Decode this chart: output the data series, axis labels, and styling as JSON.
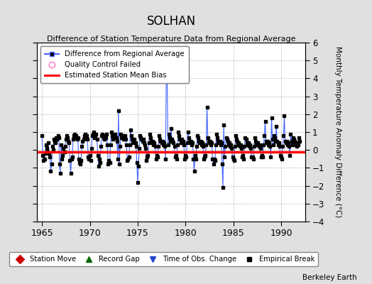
{
  "title": "SOLHAN",
  "subtitle": "Difference of Station Temperature Data from Regional Average",
  "ylabel_right": "Monthly Temperature Anomaly Difference (°C)",
  "xlim": [
    1964.5,
    1992.5
  ],
  "ylim": [
    -4,
    6
  ],
  "yticks": [
    -4,
    -3,
    -2,
    -1,
    0,
    1,
    2,
    3,
    4,
    5,
    6
  ],
  "xticks": [
    1965,
    1970,
    1975,
    1980,
    1985,
    1990
  ],
  "bias_value": -0.1,
  "background_color": "#e0e0e0",
  "plot_bg_color": "#ffffff",
  "line_color": "#4466ff",
  "marker_color": "#000000",
  "bias_color": "#ff0000",
  "watermark": "Berkeley Earth",
  "data": [
    [
      1965.0,
      0.8
    ],
    [
      1965.083,
      -0.3
    ],
    [
      1965.167,
      -0.6
    ],
    [
      1965.25,
      -0.5
    ],
    [
      1965.333,
      -0.2
    ],
    [
      1965.417,
      0.3
    ],
    [
      1965.5,
      0.1
    ],
    [
      1965.583,
      -0.1
    ],
    [
      1965.667,
      0.4
    ],
    [
      1965.75,
      -0.2
    ],
    [
      1965.833,
      -0.4
    ],
    [
      1965.917,
      -1.2
    ],
    [
      1966.0,
      -0.8
    ],
    [
      1966.083,
      0.2
    ],
    [
      1966.167,
      0.0
    ],
    [
      1966.25,
      0.6
    ],
    [
      1966.333,
      0.5
    ],
    [
      1966.417,
      0.4
    ],
    [
      1966.5,
      0.7
    ],
    [
      1966.583,
      0.6
    ],
    [
      1966.667,
      0.8
    ],
    [
      1966.75,
      0.7
    ],
    [
      1966.833,
      -0.8
    ],
    [
      1966.917,
      -1.3
    ],
    [
      1967.0,
      0.3
    ],
    [
      1967.083,
      -0.5
    ],
    [
      1967.167,
      -0.3
    ],
    [
      1967.25,
      0.1
    ],
    [
      1967.333,
      -0.1
    ],
    [
      1967.417,
      0.2
    ],
    [
      1967.5,
      0.6
    ],
    [
      1967.583,
      0.8
    ],
    [
      1967.667,
      0.7
    ],
    [
      1967.75,
      0.5
    ],
    [
      1967.833,
      0.4
    ],
    [
      1967.917,
      -0.6
    ],
    [
      1968.0,
      -1.3
    ],
    [
      1968.083,
      -0.5
    ],
    [
      1968.167,
      -0.4
    ],
    [
      1968.25,
      0.6
    ],
    [
      1968.333,
      0.8
    ],
    [
      1968.417,
      0.9
    ],
    [
      1968.5,
      0.7
    ],
    [
      1968.583,
      0.8
    ],
    [
      1968.667,
      0.6
    ],
    [
      1968.75,
      0.7
    ],
    [
      1968.833,
      -0.5
    ],
    [
      1968.917,
      -0.7
    ],
    [
      1969.0,
      -0.8
    ],
    [
      1969.083,
      -0.6
    ],
    [
      1969.167,
      0.2
    ],
    [
      1969.25,
      0.5
    ],
    [
      1969.333,
      0.6
    ],
    [
      1969.417,
      0.8
    ],
    [
      1969.5,
      0.9
    ],
    [
      1969.583,
      0.7
    ],
    [
      1969.667,
      0.8
    ],
    [
      1969.75,
      0.6
    ],
    [
      1969.833,
      -0.4
    ],
    [
      1969.917,
      -0.5
    ],
    [
      1970.0,
      -0.3
    ],
    [
      1970.083,
      -0.6
    ],
    [
      1970.167,
      0.1
    ],
    [
      1970.25,
      0.8
    ],
    [
      1970.333,
      0.9
    ],
    [
      1970.417,
      1.0
    ],
    [
      1970.5,
      0.7
    ],
    [
      1970.583,
      0.8
    ],
    [
      1970.667,
      0.9
    ],
    [
      1970.75,
      0.6
    ],
    [
      1970.833,
      -0.3
    ],
    [
      1970.917,
      -0.9
    ],
    [
      1971.0,
      -0.5
    ],
    [
      1971.083,
      -0.7
    ],
    [
      1971.167,
      0.2
    ],
    [
      1971.25,
      0.8
    ],
    [
      1971.333,
      0.9
    ],
    [
      1971.417,
      0.7
    ],
    [
      1971.5,
      0.6
    ],
    [
      1971.583,
      0.8
    ],
    [
      1971.667,
      0.7
    ],
    [
      1971.75,
      0.9
    ],
    [
      1971.833,
      0.3
    ],
    [
      1971.917,
      -0.8
    ],
    [
      1972.0,
      -0.6
    ],
    [
      1972.083,
      -0.7
    ],
    [
      1972.167,
      0.3
    ],
    [
      1972.25,
      1.0
    ],
    [
      1972.333,
      0.8
    ],
    [
      1972.417,
      0.6
    ],
    [
      1972.5,
      0.7
    ],
    [
      1972.583,
      0.8
    ],
    [
      1972.667,
      0.9
    ],
    [
      1972.75,
      0.7
    ],
    [
      1972.833,
      0.5
    ],
    [
      1972.917,
      -0.5
    ],
    [
      1973.0,
      2.2
    ],
    [
      1973.083,
      -0.8
    ],
    [
      1973.167,
      0.2
    ],
    [
      1973.25,
      0.9
    ],
    [
      1973.333,
      0.7
    ],
    [
      1973.417,
      0.8
    ],
    [
      1973.5,
      0.6
    ],
    [
      1973.583,
      0.7
    ],
    [
      1973.667,
      0.8
    ],
    [
      1973.75,
      0.6
    ],
    [
      1973.833,
      0.3
    ],
    [
      1973.917,
      -0.6
    ],
    [
      1974.0,
      -0.5
    ],
    [
      1974.083,
      -0.4
    ],
    [
      1974.167,
      0.3
    ],
    [
      1974.25,
      1.1
    ],
    [
      1974.333,
      0.8
    ],
    [
      1974.417,
      0.6
    ],
    [
      1974.5,
      0.4
    ],
    [
      1974.583,
      0.5
    ],
    [
      1974.667,
      0.6
    ],
    [
      1974.75,
      0.4
    ],
    [
      1974.833,
      0.2
    ],
    [
      1974.917,
      -0.7
    ],
    [
      1975.0,
      -1.8
    ],
    [
      1975.083,
      -0.9
    ],
    [
      1975.167,
      0.1
    ],
    [
      1975.25,
      0.8
    ],
    [
      1975.333,
      0.7
    ],
    [
      1975.417,
      0.6
    ],
    [
      1975.5,
      0.5
    ],
    [
      1975.583,
      0.6
    ],
    [
      1975.667,
      0.4
    ],
    [
      1975.75,
      0.3
    ],
    [
      1975.833,
      0.1
    ],
    [
      1975.917,
      -0.6
    ],
    [
      1976.0,
      -0.4
    ],
    [
      1976.083,
      -0.3
    ],
    [
      1976.167,
      0.4
    ],
    [
      1976.25,
      0.9
    ],
    [
      1976.333,
      0.7
    ],
    [
      1976.417,
      0.5
    ],
    [
      1976.5,
      0.4
    ],
    [
      1976.583,
      0.5
    ],
    [
      1976.667,
      0.3
    ],
    [
      1976.75,
      0.4
    ],
    [
      1976.833,
      0.2
    ],
    [
      1976.917,
      -0.5
    ],
    [
      1977.0,
      -0.3
    ],
    [
      1977.083,
      -0.4
    ],
    [
      1977.167,
      0.2
    ],
    [
      1977.25,
      0.8
    ],
    [
      1977.333,
      0.6
    ],
    [
      1977.417,
      0.5
    ],
    [
      1977.5,
      0.4
    ],
    [
      1977.583,
      0.5
    ],
    [
      1977.667,
      0.3
    ],
    [
      1977.75,
      0.4
    ],
    [
      1977.833,
      0.2
    ],
    [
      1977.917,
      -0.5
    ],
    [
      1978.0,
      4.7
    ],
    [
      1978.083,
      4.2
    ],
    [
      1978.167,
      0.3
    ],
    [
      1978.25,
      0.9
    ],
    [
      1978.333,
      0.7
    ],
    [
      1978.417,
      0.5
    ],
    [
      1978.5,
      1.2
    ],
    [
      1978.583,
      0.6
    ],
    [
      1978.667,
      0.5
    ],
    [
      1978.75,
      0.4
    ],
    [
      1978.833,
      0.2
    ],
    [
      1978.917,
      -0.4
    ],
    [
      1979.0,
      -0.3
    ],
    [
      1979.083,
      -0.5
    ],
    [
      1979.167,
      0.3
    ],
    [
      1979.25,
      1.0
    ],
    [
      1979.333,
      0.8
    ],
    [
      1979.417,
      0.6
    ],
    [
      1979.5,
      0.4
    ],
    [
      1979.583,
      0.6
    ],
    [
      1979.667,
      0.4
    ],
    [
      1979.75,
      0.5
    ],
    [
      1979.833,
      0.3
    ],
    [
      1979.917,
      -0.5
    ],
    [
      1980.0,
      -0.3
    ],
    [
      1980.083,
      -0.4
    ],
    [
      1980.167,
      0.4
    ],
    [
      1980.25,
      1.0
    ],
    [
      1980.333,
      0.7
    ],
    [
      1980.417,
      0.5
    ],
    [
      1980.5,
      0.4
    ],
    [
      1980.583,
      0.5
    ],
    [
      1980.667,
      0.3
    ],
    [
      1980.75,
      0.4
    ],
    [
      1980.833,
      -0.5
    ],
    [
      1980.917,
      -1.2
    ],
    [
      1981.0,
      -0.3
    ],
    [
      1981.083,
      -0.5
    ],
    [
      1981.167,
      0.2
    ],
    [
      1981.25,
      0.8
    ],
    [
      1981.333,
      0.7
    ],
    [
      1981.417,
      0.5
    ],
    [
      1981.5,
      0.4
    ],
    [
      1981.583,
      0.5
    ],
    [
      1981.667,
      0.3
    ],
    [
      1981.75,
      0.4
    ],
    [
      1981.833,
      0.2
    ],
    [
      1981.917,
      -0.5
    ],
    [
      1982.0,
      -0.4
    ],
    [
      1982.083,
      -0.3
    ],
    [
      1982.167,
      0.3
    ],
    [
      1982.25,
      2.4
    ],
    [
      1982.333,
      0.7
    ],
    [
      1982.417,
      0.5
    ],
    [
      1982.5,
      0.4
    ],
    [
      1982.583,
      0.5
    ],
    [
      1982.667,
      0.3
    ],
    [
      1982.75,
      0.4
    ],
    [
      1982.833,
      -0.5
    ],
    [
      1982.917,
      -0.8
    ],
    [
      1983.0,
      -0.5
    ],
    [
      1983.083,
      -0.6
    ],
    [
      1983.167,
      0.3
    ],
    [
      1983.25,
      0.9
    ],
    [
      1983.333,
      0.7
    ],
    [
      1983.417,
      0.5
    ],
    [
      1983.5,
      0.4
    ],
    [
      1983.583,
      0.5
    ],
    [
      1983.667,
      0.3
    ],
    [
      1983.75,
      0.4
    ],
    [
      1983.833,
      -0.8
    ],
    [
      1983.917,
      -2.1
    ],
    [
      1984.0,
      1.4
    ],
    [
      1984.083,
      -0.4
    ],
    [
      1984.167,
      0.2
    ],
    [
      1984.25,
      0.7
    ],
    [
      1984.333,
      0.6
    ],
    [
      1984.417,
      0.5
    ],
    [
      1984.5,
      0.3
    ],
    [
      1984.583,
      0.4
    ],
    [
      1984.667,
      0.2
    ],
    [
      1984.75,
      0.3
    ],
    [
      1984.833,
      0.1
    ],
    [
      1984.917,
      -0.4
    ],
    [
      1985.0,
      -0.5
    ],
    [
      1985.083,
      -0.6
    ],
    [
      1985.167,
      0.2
    ],
    [
      1985.25,
      0.8
    ],
    [
      1985.333,
      0.6
    ],
    [
      1985.417,
      0.5
    ],
    [
      1985.5,
      0.3
    ],
    [
      1985.583,
      0.4
    ],
    [
      1985.667,
      0.2
    ],
    [
      1985.75,
      0.3
    ],
    [
      1985.833,
      0.1
    ],
    [
      1985.917,
      -0.4
    ],
    [
      1986.0,
      -0.3
    ],
    [
      1986.083,
      -0.5
    ],
    [
      1986.167,
      0.2
    ],
    [
      1986.25,
      0.7
    ],
    [
      1986.333,
      0.6
    ],
    [
      1986.417,
      0.4
    ],
    [
      1986.5,
      0.3
    ],
    [
      1986.583,
      0.4
    ],
    [
      1986.667,
      0.2
    ],
    [
      1986.75,
      0.3
    ],
    [
      1986.833,
      0.1
    ],
    [
      1986.917,
      -0.4
    ],
    [
      1987.0,
      -0.4
    ],
    [
      1987.083,
      -0.5
    ],
    [
      1987.167,
      0.2
    ],
    [
      1987.25,
      0.7
    ],
    [
      1987.333,
      0.5
    ],
    [
      1987.417,
      0.4
    ],
    [
      1987.5,
      0.3
    ],
    [
      1987.583,
      0.4
    ],
    [
      1987.667,
      0.2
    ],
    [
      1987.75,
      0.3
    ],
    [
      1987.833,
      0.1
    ],
    [
      1987.917,
      -0.4
    ],
    [
      1988.0,
      -0.3
    ],
    [
      1988.083,
      -0.4
    ],
    [
      1988.167,
      0.3
    ],
    [
      1988.25,
      0.8
    ],
    [
      1988.333,
      1.6
    ],
    [
      1988.417,
      0.5
    ],
    [
      1988.5,
      0.4
    ],
    [
      1988.583,
      0.5
    ],
    [
      1988.667,
      0.3
    ],
    [
      1988.75,
      0.4
    ],
    [
      1988.833,
      0.2
    ],
    [
      1988.917,
      -0.4
    ],
    [
      1989.0,
      1.8
    ],
    [
      1989.083,
      0.6
    ],
    [
      1989.167,
      0.3
    ],
    [
      1989.25,
      0.8
    ],
    [
      1989.333,
      0.7
    ],
    [
      1989.417,
      0.5
    ],
    [
      1989.5,
      1.3
    ],
    [
      1989.583,
      0.5
    ],
    [
      1989.667,
      0.3
    ],
    [
      1989.75,
      0.4
    ],
    [
      1989.833,
      0.2
    ],
    [
      1989.917,
      -0.3
    ],
    [
      1990.0,
      -0.4
    ],
    [
      1990.083,
      -0.5
    ],
    [
      1990.167,
      0.2
    ],
    [
      1990.25,
      0.8
    ],
    [
      1990.333,
      1.9
    ],
    [
      1990.417,
      0.5
    ],
    [
      1990.5,
      0.4
    ],
    [
      1990.583,
      0.5
    ],
    [
      1990.667,
      0.3
    ],
    [
      1990.75,
      0.4
    ],
    [
      1990.833,
      0.2
    ],
    [
      1990.917,
      -0.3
    ],
    [
      1991.0,
      0.9
    ],
    [
      1991.083,
      0.5
    ],
    [
      1991.167,
      0.3
    ],
    [
      1991.25,
      0.7
    ],
    [
      1991.333,
      0.6
    ],
    [
      1991.417,
      0.5
    ],
    [
      1991.5,
      0.3
    ],
    [
      1991.583,
      0.4
    ],
    [
      1991.667,
      0.2
    ],
    [
      1991.75,
      0.3
    ],
    [
      1991.833,
      0.7
    ],
    [
      1991.917,
      0.5
    ]
  ]
}
